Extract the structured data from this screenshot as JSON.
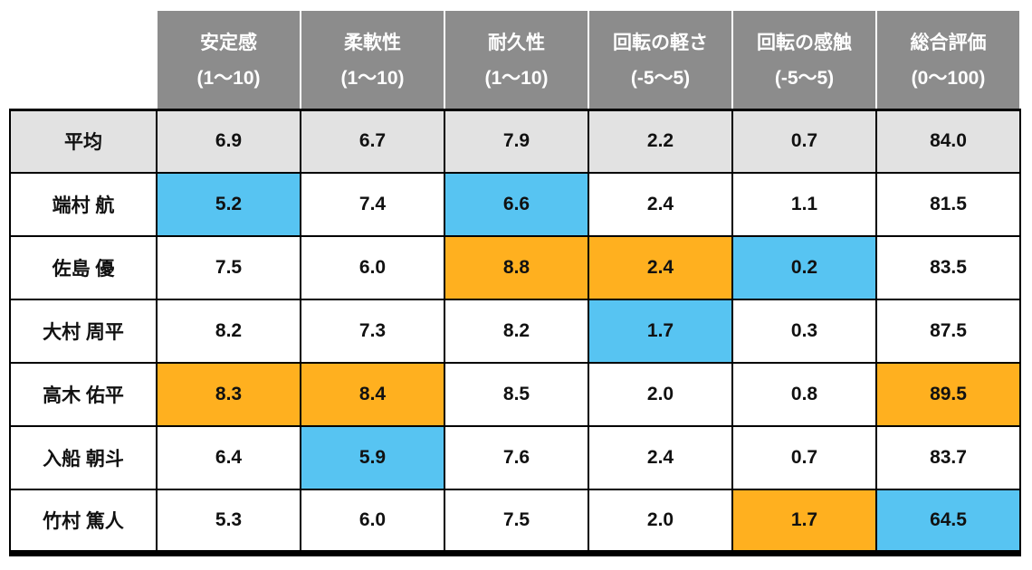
{
  "colors": {
    "header_bg": "#8c8c8c",
    "header_text": "#ffffff",
    "average_bg": "#e2e2e2",
    "cell_bg": "#ffffff",
    "highlight_orange": "#ffb01f",
    "highlight_blue": "#57c4f2",
    "border": "#000000",
    "text": "#111111"
  },
  "table": {
    "columns": [
      {
        "title": "安定感",
        "range": "(1〜10)"
      },
      {
        "title": "柔軟性",
        "range": "(1〜10)"
      },
      {
        "title": "耐久性",
        "range": "(1〜10)"
      },
      {
        "title": "回転の軽さ",
        "range": "(-5〜5)"
      },
      {
        "title": "回転の感触",
        "range": "(-5〜5)"
      },
      {
        "title": "総合評価",
        "range": "(0〜100)"
      }
    ],
    "rows": [
      {
        "label": "平均",
        "kind": "average",
        "cells": [
          {
            "value": "6.9"
          },
          {
            "value": "6.7"
          },
          {
            "value": "7.9"
          },
          {
            "value": "2.2"
          },
          {
            "value": "0.7"
          },
          {
            "value": "84.0"
          }
        ]
      },
      {
        "label": "端村 航",
        "kind": "player",
        "cells": [
          {
            "value": "5.2",
            "hl": "blue"
          },
          {
            "value": "7.4"
          },
          {
            "value": "6.6",
            "hl": "blue"
          },
          {
            "value": "2.4"
          },
          {
            "value": "1.1"
          },
          {
            "value": "81.5"
          }
        ]
      },
      {
        "label": "佐島 優",
        "kind": "player",
        "cells": [
          {
            "value": "7.5"
          },
          {
            "value": "6.0"
          },
          {
            "value": "8.8",
            "hl": "orange"
          },
          {
            "value": "2.4",
            "hl": "orange"
          },
          {
            "value": "0.2",
            "hl": "blue"
          },
          {
            "value": "83.5"
          }
        ]
      },
      {
        "label": "大村 周平",
        "kind": "player",
        "cells": [
          {
            "value": "8.2"
          },
          {
            "value": "7.3"
          },
          {
            "value": "8.2"
          },
          {
            "value": "1.7",
            "hl": "blue"
          },
          {
            "value": "0.3"
          },
          {
            "value": "87.5"
          }
        ]
      },
      {
        "label": "高木 佑平",
        "kind": "player",
        "cells": [
          {
            "value": "8.3",
            "hl": "orange"
          },
          {
            "value": "8.4",
            "hl": "orange"
          },
          {
            "value": "8.5"
          },
          {
            "value": "2.0"
          },
          {
            "value": "0.8"
          },
          {
            "value": "89.5",
            "hl": "orange"
          }
        ]
      },
      {
        "label": "入船 朝斗",
        "kind": "player",
        "cells": [
          {
            "value": "6.4"
          },
          {
            "value": "5.9",
            "hl": "blue"
          },
          {
            "value": "7.6"
          },
          {
            "value": "2.4"
          },
          {
            "value": "0.7"
          },
          {
            "value": "83.7"
          }
        ]
      },
      {
        "label": "竹村 篤人",
        "kind": "player",
        "cells": [
          {
            "value": "5.3"
          },
          {
            "value": "6.0"
          },
          {
            "value": "7.5"
          },
          {
            "value": "2.0"
          },
          {
            "value": "1.7",
            "hl": "orange"
          },
          {
            "value": "64.5",
            "hl": "blue"
          }
        ]
      }
    ]
  },
  "chart_data": {
    "type": "table",
    "title": "",
    "columns": [
      "安定感 (1〜10)",
      "柔軟性 (1〜10)",
      "耐久性 (1〜10)",
      "回転の軽さ (-5〜5)",
      "回転の感触 (-5〜5)",
      "総合評価 (0〜100)"
    ],
    "row_labels": [
      "平均",
      "端村 航",
      "佐島 優",
      "大村 周平",
      "高木 佑平",
      "入船 朝斗",
      "竹村 篤人"
    ],
    "rows": [
      [
        6.9,
        6.7,
        7.9,
        2.2,
        0.7,
        84.0
      ],
      [
        5.2,
        7.4,
        6.6,
        2.4,
        1.1,
        81.5
      ],
      [
        7.5,
        6.0,
        8.8,
        2.4,
        0.2,
        83.5
      ],
      [
        8.2,
        7.3,
        8.2,
        1.7,
        0.3,
        87.5
      ],
      [
        8.3,
        8.4,
        8.5,
        2.0,
        0.8,
        89.5
      ],
      [
        6.4,
        5.9,
        7.6,
        2.4,
        0.7,
        83.7
      ],
      [
        5.3,
        6.0,
        7.5,
        2.0,
        1.7,
        64.5
      ]
    ],
    "highlight_blue_cells": [
      {
        "row": "端村 航",
        "column": "安定感",
        "value": 5.2
      },
      {
        "row": "端村 航",
        "column": "耐久性",
        "value": 6.6
      },
      {
        "row": "佐島 優",
        "column": "回転の感触",
        "value": 0.2
      },
      {
        "row": "大村 周平",
        "column": "回転の軽さ",
        "value": 1.7
      },
      {
        "row": "入船 朝斗",
        "column": "柔軟性",
        "value": 5.9
      },
      {
        "row": "竹村 篤人",
        "column": "総合評価",
        "value": 64.5
      }
    ],
    "highlight_orange_cells": [
      {
        "row": "佐島 優",
        "column": "耐久性",
        "value": 8.8
      },
      {
        "row": "佐島 優",
        "column": "回転の軽さ",
        "value": 2.4
      },
      {
        "row": "高木 佑平",
        "column": "安定感",
        "value": 8.3
      },
      {
        "row": "高木 佑平",
        "column": "柔軟性",
        "value": 8.4
      },
      {
        "row": "高木 佑平",
        "column": "総合評価",
        "value": 89.5
      },
      {
        "row": "竹村 篤人",
        "column": "回転の感触",
        "value": 1.7
      }
    ]
  }
}
